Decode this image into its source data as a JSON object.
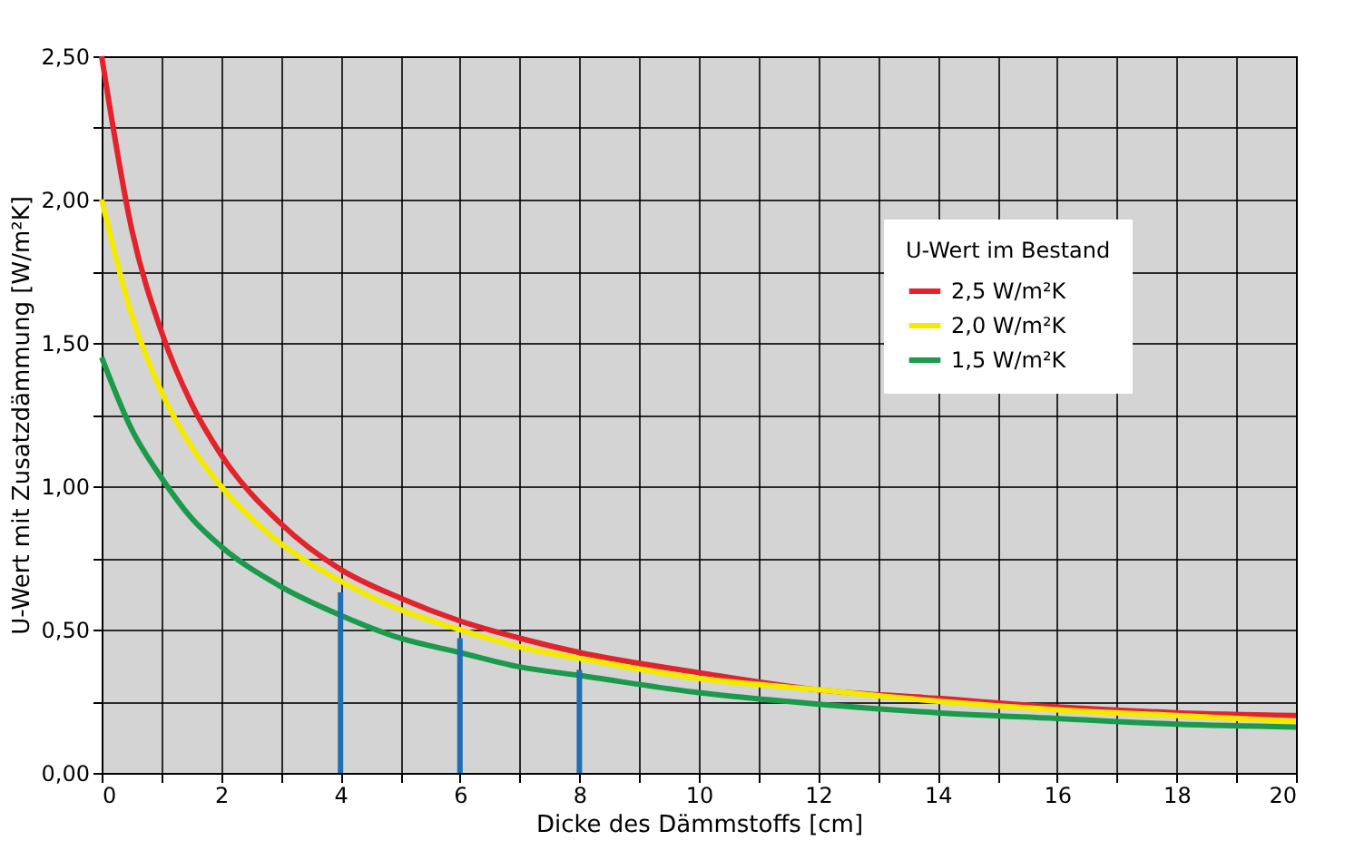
{
  "chart_data": {
    "type": "line",
    "xlabel": "Dicke des Dämmstoffs [cm]",
    "ylabel": "U-Wert mit Zusatzdämmung [W/m²K]",
    "legend_title": "U-Wert im Bestand",
    "legend": "top right",
    "grid": true,
    "line_style": "solid",
    "marker": "none",
    "x": [
      0,
      0.5,
      1,
      1.5,
      2,
      3,
      4,
      5,
      6,
      7,
      8,
      10,
      12,
      14,
      16,
      18,
      20
    ],
    "xlim": [
      0,
      20
    ],
    "ylim": [
      0,
      2.5
    ],
    "xticks": [
      0,
      {
        "value": 1,
        "label": null
      },
      2,
      {
        "value": 3,
        "label": null
      },
      4,
      {
        "value": 5,
        "label": null
      },
      6,
      {
        "value": 7,
        "label": null
      },
      8,
      {
        "value": 9,
        "label": null
      },
      10,
      {
        "value": 11,
        "label": null
      },
      12,
      {
        "value": 13,
        "label": null
      },
      14,
      {
        "value": 15,
        "label": null
      },
      16,
      {
        "value": 17,
        "label": null
      },
      18,
      {
        "value": 19,
        "label": null
      },
      20
    ],
    "yticks": [
      {
        "value": 0,
        "label": "0,00"
      },
      {
        "value": 0.25,
        "label": null
      },
      {
        "value": 0.5,
        "label": "0,50"
      },
      {
        "value": 0.75,
        "label": null
      },
      {
        "value": 1,
        "label": "1,00"
      },
      {
        "value": 1.25,
        "label": null
      },
      {
        "value": 1.5,
        "label": "1,50"
      },
      {
        "value": 1.75,
        "label": null
      },
      {
        "value": 2,
        "label": "2,00"
      },
      {
        "value": 2.25,
        "label": null
      },
      {
        "value": 2.5,
        "label": "2,50"
      }
    ],
    "series": [
      {
        "name": "2,5 W/m²K",
        "color": "#e3232b",
        "values": [
          2.5,
          1.9,
          1.54,
          1.29,
          1.11,
          0.87,
          0.71,
          0.61,
          0.53,
          0.47,
          0.42,
          0.35,
          0.29,
          0.26,
          0.23,
          0.21,
          0.2
        ]
      },
      {
        "name": "2,0 W/m²K",
        "color": "#f4ea00",
        "values": [
          2.0,
          1.6,
          1.33,
          1.14,
          1.0,
          0.8,
          0.67,
          0.57,
          0.5,
          0.44,
          0.4,
          0.33,
          0.29,
          0.25,
          0.22,
          0.2,
          0.18
        ]
      },
      {
        "name": "1,5 W/m²K",
        "color": "#1a9a4a",
        "values": [
          1.45,
          1.2,
          1.03,
          0.89,
          0.79,
          0.65,
          0.55,
          0.47,
          0.42,
          0.37,
          0.34,
          0.28,
          0.24,
          0.21,
          0.19,
          0.17,
          0.16
        ]
      },
      {
        "type": "bar",
        "color": "#1f6fb2",
        "x": [
          4,
          6,
          8
        ],
        "values": [
          0.63,
          0.47,
          0.36
        ]
      }
    ]
  }
}
